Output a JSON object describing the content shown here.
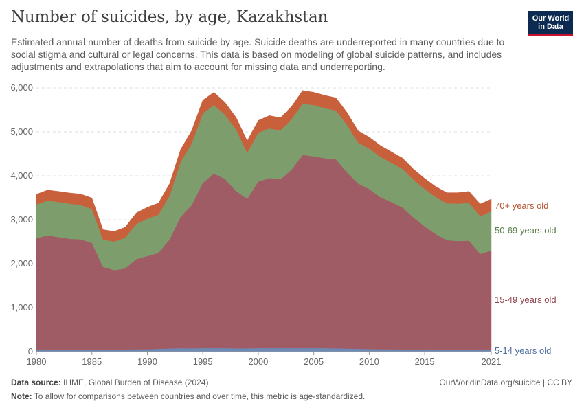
{
  "title": "Number of suicides, by age, Kazakhstan",
  "subtitle": "Estimated annual number of deaths from suicide by age. Suicide deaths are underreported in many countries due to social stigma and cultural or legal concerns. This data is based on modeling of global suicide patterns, and includes adjustments and extrapolations that aim to account for missing data and underreporting.",
  "logo": {
    "line1": "Our World",
    "line2": "in Data"
  },
  "footer": {
    "source_label": "Data source:",
    "source_text": "IHME, Global Burden of Disease (2024)",
    "url_text": "OurWorldinData.org/suicide | CC BY",
    "note_label": "Note:",
    "note_text": "To allow for comparisons between countries and over time, this metric is age-standardized."
  },
  "chart_data": {
    "type": "area",
    "stacked": true,
    "title": "Number of suicides, by age, Kazakhstan",
    "xlabel": "",
    "ylabel": "",
    "xlim": [
      1980,
      2021
    ],
    "ylim": [
      0,
      6000
    ],
    "grid": true,
    "x_ticks": [
      1980,
      1985,
      1990,
      1995,
      2000,
      2005,
      2010,
      2015,
      2021
    ],
    "y_ticks": [
      0,
      1000,
      2000,
      3000,
      4000,
      5000,
      6000
    ],
    "y_tick_labels": [
      "0",
      "1,000",
      "2,000",
      "3,000",
      "4,000",
      "5,000",
      "6,000"
    ],
    "x": [
      1980,
      1981,
      1982,
      1983,
      1984,
      1985,
      1986,
      1987,
      1988,
      1989,
      1990,
      1991,
      1992,
      1993,
      1994,
      1995,
      1996,
      1997,
      1998,
      1999,
      2000,
      2001,
      2002,
      2003,
      2004,
      2005,
      2006,
      2007,
      2008,
      2009,
      2010,
      2011,
      2012,
      2013,
      2014,
      2015,
      2016,
      2017,
      2018,
      2019,
      2020,
      2021
    ],
    "series": [
      {
        "name": "5-14 years old",
        "color": "#6d89b6",
        "values": [
          40,
          45,
          45,
          45,
          45,
          45,
          40,
          45,
          50,
          55,
          55,
          65,
          70,
          80,
          75,
          80,
          80,
          80,
          75,
          75,
          80,
          80,
          80,
          80,
          80,
          80,
          80,
          75,
          70,
          65,
          60,
          55,
          55,
          50,
          50,
          50,
          45,
          45,
          45,
          45,
          40,
          40
        ]
      },
      {
        "name": "15-49 years old",
        "color": "#a05c64",
        "values": [
          2540,
          2600,
          2560,
          2520,
          2510,
          2430,
          1890,
          1810,
          1840,
          2050,
          2120,
          2180,
          2480,
          2990,
          3260,
          3760,
          3970,
          3850,
          3580,
          3400,
          3790,
          3870,
          3840,
          4060,
          4400,
          4360,
          4320,
          4300,
          4010,
          3760,
          3640,
          3460,
          3350,
          3230,
          3000,
          2800,
          2630,
          2490,
          2470,
          2480,
          2180,
          2260
        ]
      },
      {
        "name": "50-69 years old",
        "color": "#7d9e6c",
        "values": [
          770,
          790,
          800,
          800,
          780,
          770,
          620,
          650,
          700,
          800,
          850,
          870,
          1000,
          1250,
          1400,
          1580,
          1560,
          1460,
          1400,
          1050,
          1110,
          1130,
          1110,
          1150,
          1160,
          1170,
          1140,
          1110,
          1080,
          930,
          920,
          920,
          890,
          880,
          860,
          850,
          840,
          840,
          850,
          860,
          860,
          890
        ]
      },
      {
        "name": "70+ years old",
        "color": "#c9603c",
        "values": [
          230,
          240,
          240,
          245,
          250,
          250,
          225,
          230,
          240,
          250,
          260,
          265,
          270,
          280,
          295,
          300,
          290,
          280,
          275,
          270,
          280,
          290,
          290,
          290,
          300,
          290,
          290,
          290,
          280,
          270,
          260,
          255,
          250,
          245,
          240,
          240,
          240,
          240,
          250,
          260,
          280,
          280
        ]
      }
    ],
    "legend_placement": "right-end labels"
  }
}
